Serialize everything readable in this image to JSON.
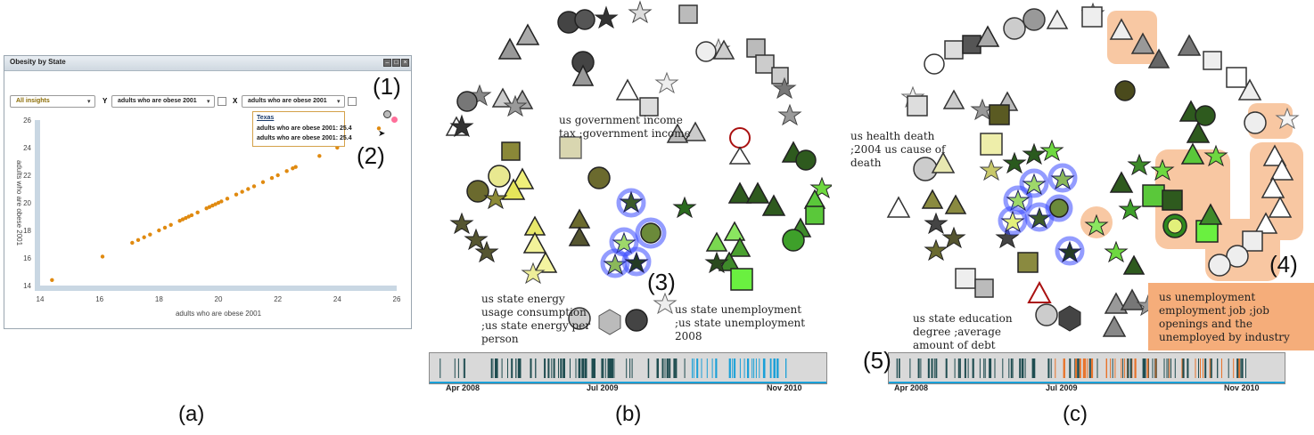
{
  "panel_a": {
    "window_title": "Obesity by State",
    "insights_dropdown": "All insights",
    "y_axis_prefix": "Y",
    "y_dropdown": "adults who are obese 2001",
    "x_axis_prefix": "X",
    "x_dropdown": "adults who are obese 2001",
    "y_axis_label": "adults who are obese 2001",
    "x_axis_label": "adults who are obese 2001",
    "tooltip": {
      "title": "Texas",
      "line1": "adults who are obese 2001: 25.4",
      "line2": "adults who are obese 2001: 25.4"
    },
    "chart_data": {
      "type": "scatter",
      "xlabel": "adults who are obese 2001",
      "ylabel": "adults who are obese 2001",
      "xlim": [
        14,
        26
      ],
      "ylim": [
        14,
        26
      ],
      "x_ticks": [
        "14",
        "16",
        "18",
        "20",
        "22",
        "24",
        "26"
      ],
      "y_ticks": [
        "14",
        "16",
        "18",
        "20",
        "22",
        "24",
        "26"
      ],
      "point_color": "#e08a10",
      "points": [
        [
          14.4,
          14.4
        ],
        [
          16.1,
          16.1
        ],
        [
          17.1,
          17.1
        ],
        [
          17.3,
          17.3
        ],
        [
          17.5,
          17.5
        ],
        [
          17.7,
          17.7
        ],
        [
          18.0,
          18.0
        ],
        [
          18.2,
          18.2
        ],
        [
          18.4,
          18.4
        ],
        [
          18.7,
          18.7
        ],
        [
          18.8,
          18.8
        ],
        [
          18.9,
          18.9
        ],
        [
          19.0,
          19.0
        ],
        [
          19.1,
          19.1
        ],
        [
          19.3,
          19.3
        ],
        [
          19.6,
          19.6
        ],
        [
          19.7,
          19.7
        ],
        [
          19.8,
          19.8
        ],
        [
          19.9,
          19.9
        ],
        [
          20.0,
          20.0
        ],
        [
          20.1,
          20.1
        ],
        [
          20.3,
          20.3
        ],
        [
          20.6,
          20.6
        ],
        [
          20.8,
          20.8
        ],
        [
          21.0,
          21.0
        ],
        [
          21.2,
          21.2
        ],
        [
          21.5,
          21.5
        ],
        [
          21.8,
          21.8
        ],
        [
          22.0,
          22.0
        ],
        [
          22.3,
          22.3
        ],
        [
          22.5,
          22.5
        ],
        [
          22.6,
          22.6
        ],
        [
          23.4,
          23.4
        ],
        [
          24.0,
          24.0
        ],
        [
          25.4,
          25.4
        ]
      ]
    }
  },
  "panel_b": {
    "notes": [
      "us government income tax ;government income",
      "us state energy usage consumption ;us state energy per person",
      "us state unemployment ;us state unemployment 2008"
    ],
    "timeline_labels": [
      "Apr 2008",
      "Jul 2009",
      "Nov 2010"
    ]
  },
  "panel_c": {
    "notes": [
      "us health death ;2004 us cause of death",
      "us state education degree ;average amount of debt",
      "us unemployment employment job ;job openings and the unemployed by industry"
    ],
    "timeline_labels": [
      "Apr 2008",
      "Jul 2009",
      "Nov 2010"
    ]
  },
  "callouts": [
    "(1)",
    "(2)",
    "(3)",
    "(4)",
    "(5)"
  ],
  "captions": [
    "(a)",
    "(b)",
    "(c)"
  ],
  "colors": {
    "scatter_point": "#e08a10",
    "tooltip_border": "#d4a14a",
    "selection_glow": "#2a3cff",
    "highlight_orange": "#f39a57",
    "timeline_dark": "#1f4d50",
    "timeline_blue": "#1aa0d8",
    "timeline_orange": "#e8732a"
  }
}
